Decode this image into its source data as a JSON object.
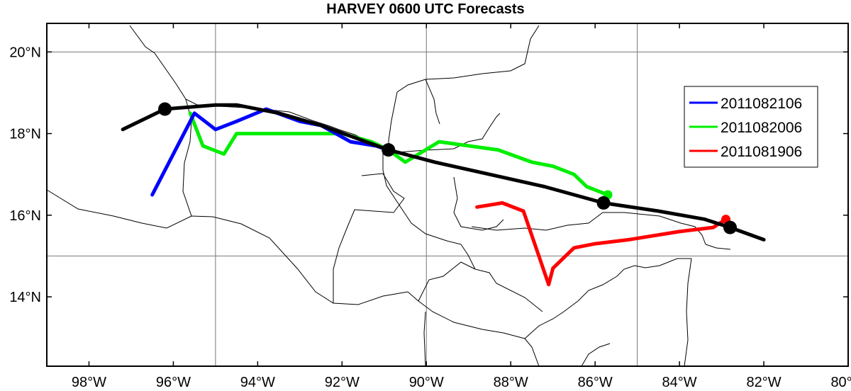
{
  "title": "HARVEY 0600 UTC Forecasts",
  "chart_data": {
    "type": "line",
    "title": "HARVEY 0600 UTC Forecasts",
    "xlim": [
      -99,
      -80
    ],
    "ylim": [
      12.3,
      20.7
    ],
    "x_ticks": [
      {
        "value": -98,
        "label": "98°W"
      },
      {
        "value": -96,
        "label": "96°W"
      },
      {
        "value": -94,
        "label": "94°W"
      },
      {
        "value": -92,
        "label": "92°W"
      },
      {
        "value": -90,
        "label": "90°W"
      },
      {
        "value": -88,
        "label": "88°W"
      },
      {
        "value": -86,
        "label": "86°W"
      },
      {
        "value": -84,
        "label": "84°W"
      },
      {
        "value": -82,
        "label": "82°W"
      },
      {
        "value": -80,
        "label": "80°W"
      }
    ],
    "y_ticks": [
      {
        "value": 14,
        "label": "14°N"
      },
      {
        "value": 16,
        "label": "16°N"
      },
      {
        "value": 18,
        "label": "18°N"
      },
      {
        "value": 20,
        "label": "20°N"
      }
    ],
    "gridlines": {
      "lons": [
        -95,
        -90,
        -85
      ],
      "lats": [
        15,
        20
      ]
    },
    "legend_position": "right",
    "observed_track": {
      "color": "#000000",
      "points": [
        [
          -82.0,
          15.4
        ],
        [
          -82.8,
          15.7
        ],
        [
          -83.4,
          15.9
        ],
        [
          -84.5,
          16.1
        ],
        [
          -85.8,
          16.3
        ],
        [
          -87.2,
          16.7
        ],
        [
          -88.5,
          17.0
        ],
        [
          -89.8,
          17.3
        ],
        [
          -90.9,
          17.6
        ],
        [
          -92.5,
          18.2
        ],
        [
          -93.5,
          18.5
        ],
        [
          -94.5,
          18.7
        ],
        [
          -95.0,
          18.7
        ],
        [
          -96.2,
          18.6
        ],
        [
          -97.2,
          18.1
        ]
      ],
      "markers": [
        [
          -82.8,
          15.7
        ],
        [
          -85.8,
          16.3
        ],
        [
          -90.9,
          17.6
        ],
        [
          -96.2,
          18.6
        ]
      ]
    },
    "series": [
      {
        "name": "2011082106",
        "color": "#0000ff",
        "points": [
          [
            -90.9,
            17.6
          ],
          [
            -91.2,
            17.7
          ],
          [
            -91.8,
            17.8
          ],
          [
            -92.5,
            18.2
          ],
          [
            -93.0,
            18.3
          ],
          [
            -93.8,
            18.6
          ],
          [
            -94.5,
            18.3
          ],
          [
            -95.0,
            18.1
          ],
          [
            -95.5,
            18.5
          ],
          [
            -96.5,
            16.5
          ]
        ]
      },
      {
        "name": "2011082006",
        "color": "#00ee00",
        "points": [
          [
            -85.7,
            16.5
          ],
          [
            -86.2,
            16.7
          ],
          [
            -86.5,
            17.0
          ],
          [
            -87.0,
            17.2
          ],
          [
            -87.5,
            17.3
          ],
          [
            -88.3,
            17.6
          ],
          [
            -89.0,
            17.7
          ],
          [
            -89.7,
            17.8
          ],
          [
            -90.5,
            17.3
          ],
          [
            -90.9,
            17.6
          ],
          [
            -91.3,
            17.8
          ],
          [
            -92.0,
            18.0
          ],
          [
            -94.5,
            18.0
          ],
          [
            -94.8,
            17.5
          ],
          [
            -95.3,
            17.7
          ],
          [
            -95.6,
            18.5
          ]
        ]
      },
      {
        "name": "2011081906",
        "color": "#ff0000",
        "points": [
          [
            -82.9,
            15.9
          ],
          [
            -83.2,
            15.7
          ],
          [
            -84.0,
            15.6
          ],
          [
            -85.2,
            15.4
          ],
          [
            -86.0,
            15.3
          ],
          [
            -86.5,
            15.2
          ],
          [
            -87.0,
            14.7
          ],
          [
            -87.1,
            14.3
          ],
          [
            -87.7,
            16.1
          ],
          [
            -88.2,
            16.3
          ],
          [
            -88.8,
            16.2
          ]
        ],
        "end_marker": [
          -82.9,
          15.9
        ]
      }
    ]
  },
  "map_style": {
    "land_border_color": "#000000",
    "grid_color": "#777777"
  }
}
